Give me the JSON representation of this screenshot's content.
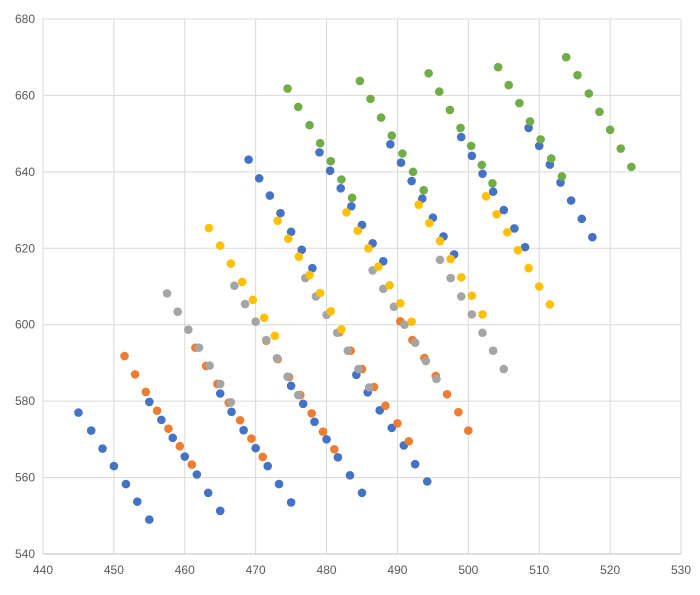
{
  "chart_data": {
    "type": "scatter",
    "title": "",
    "xlabel": "",
    "ylabel": "",
    "xlim": [
      440,
      530
    ],
    "ylim": [
      540,
      680
    ],
    "x_ticks": [
      "440",
      "450",
      "460",
      "470",
      "480",
      "490",
      "500",
      "510",
      "520",
      "530"
    ],
    "y_ticks": [
      "540",
      "560",
      "580",
      "600",
      "620",
      "640",
      "660",
      "680"
    ],
    "grid": true,
    "legend": "none",
    "series": [
      {
        "color": "#4472C4",
        "points": [
          [
            445.0,
            577.0
          ],
          [
            446.8,
            572.3
          ],
          [
            448.4,
            567.6
          ],
          [
            450.0,
            563.0
          ],
          [
            451.7,
            558.3
          ],
          [
            453.3,
            553.7
          ],
          [
            455.0,
            549.0
          ],
          [
            455.0,
            579.8
          ],
          [
            456.7,
            575.1
          ],
          [
            458.3,
            570.4
          ],
          [
            460.0,
            565.5
          ],
          [
            461.7,
            560.8
          ],
          [
            463.3,
            556.0
          ],
          [
            465.0,
            551.3
          ],
          [
            465.0,
            582.0
          ],
          [
            466.6,
            577.2
          ],
          [
            468.3,
            572.4
          ],
          [
            470.0,
            567.7
          ],
          [
            471.7,
            563.0
          ],
          [
            473.3,
            558.3
          ],
          [
            475.0,
            553.5
          ],
          [
            475.0,
            584.0
          ],
          [
            476.7,
            579.3
          ],
          [
            478.3,
            574.6
          ],
          [
            480.0,
            570.0
          ],
          [
            481.6,
            565.3
          ],
          [
            483.3,
            560.6
          ],
          [
            485.0,
            556.0
          ],
          [
            484.2,
            586.9
          ],
          [
            485.8,
            582.3
          ],
          [
            487.5,
            577.6
          ],
          [
            489.2,
            573.0
          ],
          [
            490.9,
            568.4
          ],
          [
            492.5,
            563.5
          ],
          [
            494.2,
            559.0
          ],
          [
            469.0,
            643.2
          ],
          [
            470.5,
            638.3
          ],
          [
            472.0,
            633.8
          ],
          [
            473.5,
            629.2
          ],
          [
            475.0,
            624.3
          ],
          [
            476.5,
            619.6
          ],
          [
            478.0,
            614.8
          ],
          [
            479.0,
            645.1
          ],
          [
            480.5,
            640.3
          ],
          [
            482.0,
            635.7
          ],
          [
            483.5,
            631.0
          ],
          [
            485.0,
            626.1
          ],
          [
            486.5,
            621.3
          ],
          [
            488.0,
            616.6
          ],
          [
            489.0,
            647.2
          ],
          [
            490.5,
            642.4
          ],
          [
            492.0,
            637.6
          ],
          [
            493.5,
            633.0
          ],
          [
            495.0,
            628.0
          ],
          [
            496.5,
            623.1
          ],
          [
            498.0,
            618.4
          ],
          [
            499.0,
            649.1
          ],
          [
            500.5,
            644.2
          ],
          [
            502.0,
            639.5
          ],
          [
            503.5,
            634.8
          ],
          [
            505.0,
            630.0
          ],
          [
            506.5,
            625.2
          ],
          [
            508.0,
            620.3
          ],
          [
            508.5,
            651.5
          ],
          [
            510.0,
            646.8
          ],
          [
            511.5,
            641.9
          ],
          [
            513.0,
            637.2
          ],
          [
            514.5,
            632.5
          ],
          [
            516.0,
            627.7
          ],
          [
            517.5,
            622.9
          ]
        ]
      },
      {
        "color": "#ED7D31",
        "points": [
          [
            451.5,
            591.8
          ],
          [
            453.0,
            587.0
          ],
          [
            454.5,
            582.4
          ],
          [
            456.1,
            577.5
          ],
          [
            457.7,
            572.8
          ],
          [
            459.3,
            568.2
          ],
          [
            461.0,
            563.4
          ],
          [
            461.5,
            594.0
          ],
          [
            463.0,
            589.2
          ],
          [
            464.6,
            584.5
          ],
          [
            466.2,
            579.6
          ],
          [
            467.8,
            575.0
          ],
          [
            469.4,
            570.2
          ],
          [
            471.0,
            565.4
          ],
          [
            471.5,
            595.8
          ],
          [
            473.1,
            591.0
          ],
          [
            474.7,
            586.3
          ],
          [
            476.3,
            581.6
          ],
          [
            477.9,
            576.8
          ],
          [
            479.5,
            572.0
          ],
          [
            481.1,
            567.4
          ],
          [
            481.8,
            598.0
          ],
          [
            483.4,
            593.2
          ],
          [
            485.0,
            588.4
          ],
          [
            486.7,
            583.7
          ],
          [
            488.3,
            578.8
          ],
          [
            490.0,
            574.2
          ],
          [
            491.6,
            569.5
          ],
          [
            490.4,
            600.9
          ],
          [
            492.1,
            596.0
          ],
          [
            493.8,
            591.3
          ],
          [
            495.4,
            586.6
          ],
          [
            497.0,
            581.8
          ],
          [
            498.6,
            577.1
          ],
          [
            500.0,
            572.3
          ]
        ]
      },
      {
        "color": "#A5A5A5",
        "points": [
          [
            457.5,
            608.2
          ],
          [
            459.0,
            603.4
          ],
          [
            460.5,
            598.7
          ],
          [
            462.0,
            594.0
          ],
          [
            463.5,
            589.3
          ],
          [
            465.0,
            584.5
          ],
          [
            466.5,
            579.7
          ],
          [
            467.0,
            610.2
          ],
          [
            468.5,
            605.4
          ],
          [
            470.0,
            600.8
          ],
          [
            471.5,
            596.0
          ],
          [
            473.0,
            591.2
          ],
          [
            474.5,
            586.4
          ],
          [
            476.0,
            581.6
          ],
          [
            477.0,
            612.2
          ],
          [
            478.5,
            607.4
          ],
          [
            480.0,
            602.6
          ],
          [
            481.5,
            597.9
          ],
          [
            483.0,
            593.2
          ],
          [
            484.5,
            588.4
          ],
          [
            486.0,
            583.6
          ],
          [
            486.5,
            614.2
          ],
          [
            488.0,
            609.4
          ],
          [
            489.5,
            604.7
          ],
          [
            491.0,
            600.0
          ],
          [
            492.5,
            595.3
          ],
          [
            494.0,
            590.5
          ],
          [
            495.5,
            585.8
          ],
          [
            496.0,
            617.0
          ],
          [
            497.5,
            612.2
          ],
          [
            499.0,
            607.4
          ],
          [
            500.5,
            602.7
          ],
          [
            502.0,
            597.9
          ],
          [
            503.5,
            593.2
          ],
          [
            505.0,
            588.4
          ]
        ]
      },
      {
        "color": "#FFC000",
        "points": [
          [
            463.4,
            625.3
          ],
          [
            465.0,
            620.7
          ],
          [
            466.5,
            616.0
          ],
          [
            468.1,
            611.2
          ],
          [
            469.6,
            606.5
          ],
          [
            471.2,
            601.8
          ],
          [
            472.7,
            597.1
          ],
          [
            473.1,
            627.2
          ],
          [
            474.6,
            622.5
          ],
          [
            476.1,
            617.8
          ],
          [
            477.6,
            613.0
          ],
          [
            479.1,
            608.3
          ],
          [
            480.6,
            603.5
          ],
          [
            482.1,
            598.8
          ],
          [
            482.8,
            629.4
          ],
          [
            484.4,
            624.6
          ],
          [
            485.9,
            620.0
          ],
          [
            487.3,
            615.2
          ],
          [
            488.9,
            610.3
          ],
          [
            490.4,
            605.6
          ],
          [
            492.0,
            600.8
          ],
          [
            493.0,
            631.4
          ],
          [
            494.5,
            626.6
          ],
          [
            496.0,
            621.9
          ],
          [
            497.5,
            617.2
          ],
          [
            499.0,
            612.4
          ],
          [
            500.5,
            607.6
          ],
          [
            502.0,
            602.7
          ],
          [
            502.5,
            633.6
          ],
          [
            504.0,
            628.9
          ],
          [
            505.5,
            624.2
          ],
          [
            507.0,
            619.5
          ],
          [
            508.5,
            614.8
          ],
          [
            510.0,
            610.0
          ],
          [
            511.5,
            605.3
          ]
        ]
      },
      {
        "color": "#70AD47",
        "points": [
          [
            474.5,
            661.8
          ],
          [
            476.0,
            657.0
          ],
          [
            477.6,
            652.2
          ],
          [
            479.1,
            647.5
          ],
          [
            480.6,
            642.8
          ],
          [
            482.1,
            638.0
          ],
          [
            483.6,
            633.2
          ],
          [
            484.7,
            663.8
          ],
          [
            486.2,
            659.1
          ],
          [
            487.7,
            654.2
          ],
          [
            489.2,
            649.5
          ],
          [
            490.7,
            644.8
          ],
          [
            492.2,
            640.0
          ],
          [
            493.7,
            635.2
          ],
          [
            494.4,
            665.8
          ],
          [
            495.9,
            661.0
          ],
          [
            497.4,
            656.2
          ],
          [
            498.9,
            651.5
          ],
          [
            500.4,
            646.8
          ],
          [
            501.9,
            641.8
          ],
          [
            503.4,
            637.0
          ],
          [
            504.2,
            667.4
          ],
          [
            505.7,
            662.7
          ],
          [
            507.2,
            658.0
          ],
          [
            508.7,
            653.2
          ],
          [
            510.2,
            648.5
          ],
          [
            511.7,
            643.5
          ],
          [
            513.2,
            638.8
          ],
          [
            513.8,
            670.0
          ],
          [
            515.4,
            665.3
          ],
          [
            517.0,
            660.5
          ],
          [
            518.5,
            655.7
          ],
          [
            520.0,
            651.0
          ],
          [
            521.5,
            646.1
          ],
          [
            523.0,
            641.3
          ]
        ]
      }
    ]
  }
}
